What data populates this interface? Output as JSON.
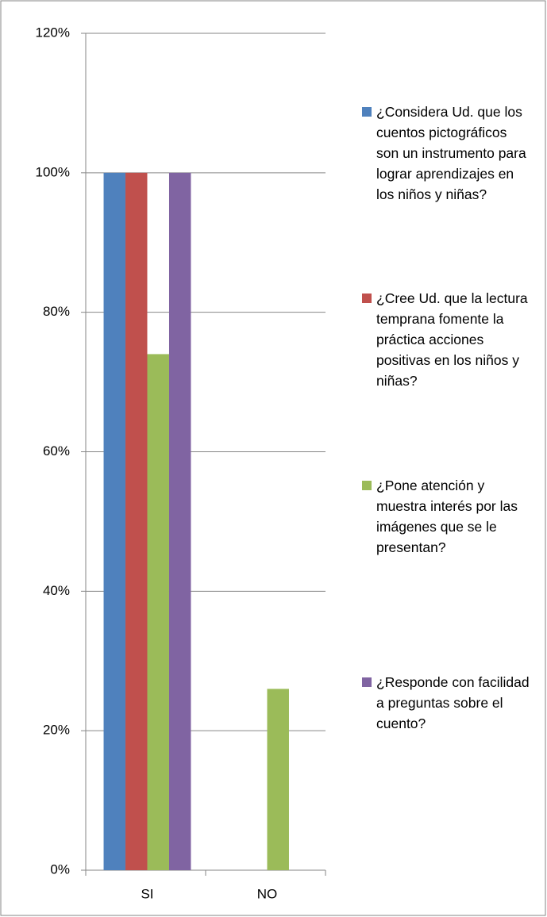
{
  "chart_data": {
    "type": "bar",
    "categories": [
      "SI",
      "NO"
    ],
    "series": [
      {
        "name": "¿Considera Ud. que los cuentos pictográficos son un instrumento para lograr aprendizajes en los niños y niñas?",
        "color": "#4f81bd",
        "values": [
          100,
          0
        ]
      },
      {
        "name": "¿Cree Ud. que la lectura temprana fomente la práctica  acciones positivas en los niños y niñas?",
        "color": "#c0504d",
        "values": [
          100,
          0
        ]
      },
      {
        "name": "¿Pone atención y muestra interés por las imágenes que se le presentan?",
        "color": "#9bbb59",
        "values": [
          74,
          26
        ]
      },
      {
        "name": "¿Responde con facilidad a preguntas sobre el cuento?",
        "color": "#8064a2",
        "values": [
          100,
          0
        ]
      }
    ],
    "ylim": [
      0,
      120
    ],
    "yticks": [
      {
        "value": 0,
        "label": "0%"
      },
      {
        "value": 20,
        "label": "20%"
      },
      {
        "value": 40,
        "label": "40%"
      },
      {
        "value": 60,
        "label": "60%"
      },
      {
        "value": 80,
        "label": "80%"
      },
      {
        "value": 100,
        "label": "100%"
      },
      {
        "value": 120,
        "label": "120%"
      }
    ],
    "grid": true,
    "legend": "right"
  }
}
